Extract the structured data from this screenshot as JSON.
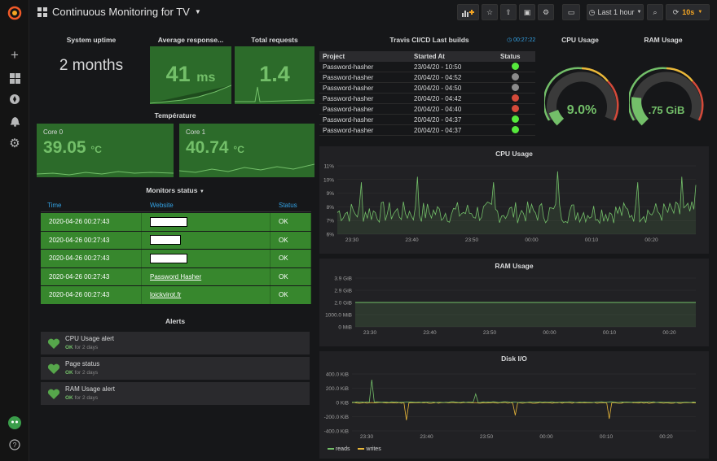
{
  "dashboard": {
    "title": "Continuous Monitoring for TV",
    "time_range": "Last 1 hour",
    "refresh": "10s"
  },
  "uptime": {
    "title": "System uptime",
    "value": "2 months"
  },
  "response": {
    "title": "Average response...",
    "value": "41",
    "unit": "ms"
  },
  "requests": {
    "title": "Total requests",
    "value": "1.4"
  },
  "temperature": {
    "title": "Température",
    "core0_label": "Core 0",
    "core0_value": "39.05",
    "core1_label": "Core 1",
    "core1_value": "40.74",
    "unit": "°C"
  },
  "builds": {
    "title": "Travis CI/CD Last builds",
    "time": "00:27:22",
    "headers": [
      "Project",
      "Started At",
      "Status"
    ],
    "rows": [
      {
        "project": "Password-hasher",
        "started": "23/04/20 - 10:50",
        "status": "#56e83c"
      },
      {
        "project": "Password-hasher",
        "started": "20/04/20 - 04:52",
        "status": "#8b8b8b"
      },
      {
        "project": "Password-hasher",
        "started": "20/04/20 - 04:50",
        "status": "#8b8b8b"
      },
      {
        "project": "Password-hasher",
        "started": "20/04/20 - 04:42",
        "status": "#d44a3a"
      },
      {
        "project": "Password-hasher",
        "started": "20/04/20 - 04:40",
        "status": "#d44a3a"
      },
      {
        "project": "Password-hasher",
        "started": "20/04/20 - 04:37",
        "status": "#56e83c"
      },
      {
        "project": "Password-hasher",
        "started": "20/04/20 - 04:37",
        "status": "#56e83c"
      }
    ]
  },
  "cpu_gauge": {
    "title": "CPU Usage",
    "value": "9.0%",
    "fraction": 0.09
  },
  "ram_gauge": {
    "title": "RAM Usage",
    "value": ".75 GiB",
    "fraction": 0.19
  },
  "monitors": {
    "title": "Monitors status",
    "headers": [
      "Time",
      "Website",
      "Status"
    ],
    "rows": [
      {
        "time": "2020-04-26 00:27:43",
        "website": "",
        "status": "OK"
      },
      {
        "time": "2020-04-26 00:27:43",
        "website": "",
        "status": "OK"
      },
      {
        "time": "2020-04-26 00:27:43",
        "website": "",
        "status": "OK"
      },
      {
        "time": "2020-04-26 00:27:43",
        "website": "Password Hasher",
        "status": "OK"
      },
      {
        "time": "2020-04-26 00:27:43",
        "website": "loickvirot.fr",
        "status": "OK"
      }
    ]
  },
  "alerts": {
    "title": "Alerts",
    "items": [
      {
        "name": "CPU Usage alert",
        "state": "OK",
        "since": "for 2 days"
      },
      {
        "name": "Page status",
        "state": "OK",
        "since": "for 2 days"
      },
      {
        "name": "RAM Usage alert",
        "state": "OK",
        "since": "for 2 days"
      }
    ]
  },
  "chart_data": [
    {
      "type": "line",
      "title": "CPU Usage",
      "x": [
        "23:30",
        "23:40",
        "23:50",
        "00:00",
        "00:10",
        "00:20"
      ],
      "y_ticks": [
        "11%",
        "10%",
        "9%",
        "8%",
        "7%",
        "6%"
      ],
      "ylim": [
        6,
        11
      ],
      "series": [
        {
          "name": "",
          "color": "#73bf69"
        }
      ]
    },
    {
      "type": "area",
      "title": "RAM Usage",
      "x": [
        "23:30",
        "23:40",
        "23:50",
        "00:00",
        "00:10",
        "00:20"
      ],
      "y_ticks": [
        "3.9 GiB",
        "2.9 GiB",
        "2.0 GiB",
        "1000.0 MiB",
        "0 MiB"
      ],
      "series": [
        {
          "name": "",
          "color": "#73bf69",
          "values": [
            1.95,
            1.95,
            1.95,
            1.95,
            1.95,
            1.95
          ]
        }
      ]
    },
    {
      "type": "line",
      "title": "Disk I/O",
      "x": [
        "23:30",
        "23:40",
        "23:50",
        "00:00",
        "00:10",
        "00:20"
      ],
      "y_ticks": [
        "400.0 KiB",
        "200.0 KiB",
        "0 KiB",
        "-200.0 KiB",
        "-400.0 KiB"
      ],
      "series": [
        {
          "name": "reads",
          "color": "#73bf69"
        },
        {
          "name": "writes",
          "color": "#eab839"
        }
      ]
    }
  ]
}
